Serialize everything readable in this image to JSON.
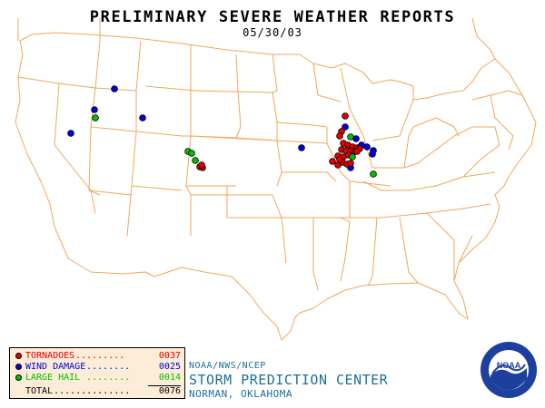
{
  "title": "PRELIMINARY SEVERE WEATHER REPORTS",
  "date": "05/30/03",
  "legend": {
    "tornadoes": {
      "label": "TORNADOES",
      "count": "0037",
      "color": "#e00000"
    },
    "wind_damage": {
      "label": "WIND DAMAGE",
      "count": "0025",
      "color": "#0000e0"
    },
    "large_hail": {
      "label": "LARGE HAIL",
      "count": "0014",
      "color": "#00c000"
    },
    "total": {
      "label": "TOTAL",
      "count": "0076"
    }
  },
  "footer": {
    "agency": "NOAA/NWS/NCEP",
    "center": "STORM PREDICTION CENTER",
    "location": "NORMAN, OKLAHOMA"
  },
  "logo": {
    "icon": "noaa-logo",
    "text": "NOAA"
  },
  "colors": {
    "map_lines": "#f2a65a",
    "legend_bg": "#fdecd8",
    "footer_text": "#1f6f96"
  }
}
